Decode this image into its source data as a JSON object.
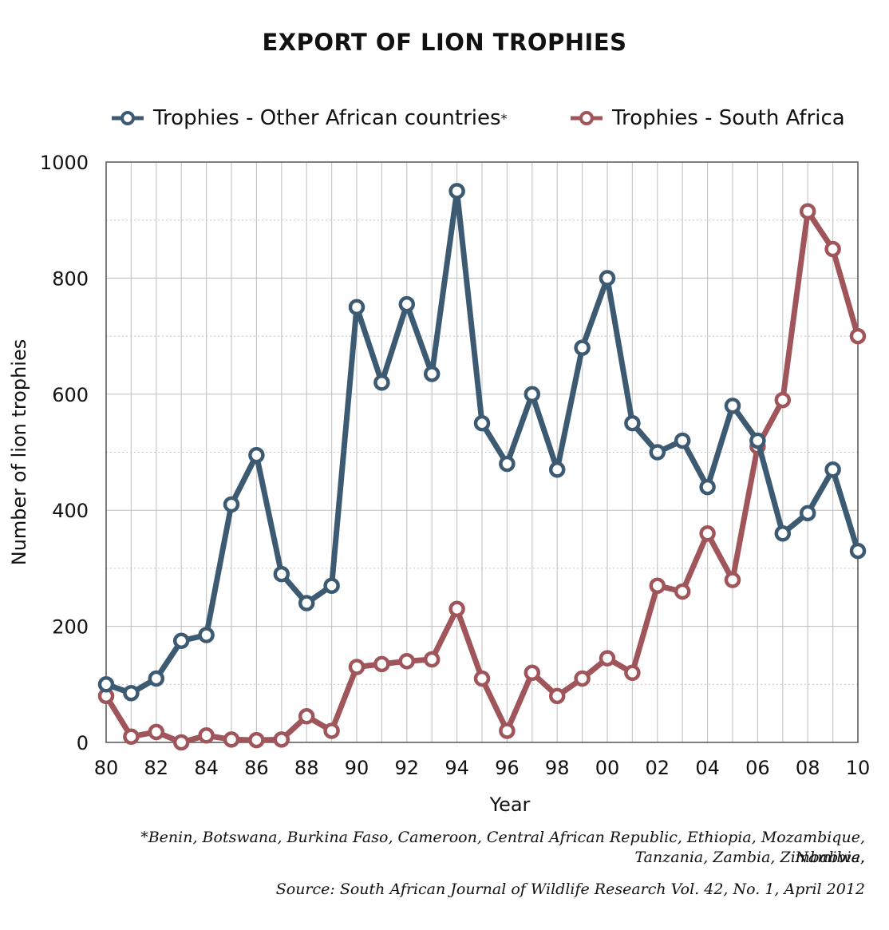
{
  "chart_data": {
    "type": "line",
    "title": "EXPORT OF LION TROPHIES",
    "xlabel": "Year",
    "ylabel": "Number of lion trophies",
    "ylim": [
      0,
      1000
    ],
    "y_ticks": [
      "0",
      "200",
      "400",
      "600",
      "800",
      "1000"
    ],
    "x_tick_labels": [
      "80",
      "82",
      "84",
      "86",
      "88",
      "90",
      "92",
      "94",
      "96",
      "98",
      "00",
      "02",
      "04",
      "06",
      "08",
      "10"
    ],
    "x": [
      1980,
      1981,
      1982,
      1983,
      1984,
      1985,
      1986,
      1987,
      1988,
      1989,
      1990,
      1991,
      1992,
      1993,
      1994,
      1995,
      1996,
      1997,
      1998,
      1999,
      2000,
      2001,
      2002,
      2003,
      2004,
      2005,
      2006,
      2007,
      2008,
      2009,
      2010
    ],
    "xlim": [
      1980,
      2010
    ],
    "grid": true,
    "legend_position": "top",
    "series": [
      {
        "name": "Trophies - Other African countries",
        "name_suffix": "*",
        "color": "#3d5a73",
        "values": [
          100,
          85,
          110,
          175,
          185,
          410,
          495,
          290,
          240,
          270,
          750,
          620,
          755,
          635,
          950,
          550,
          480,
          600,
          470,
          680,
          800,
          550,
          500,
          520,
          440,
          580,
          520,
          360,
          395,
          470,
          330
        ]
      },
      {
        "name": "Trophies - South Africa",
        "color": "#a0555a",
        "values": [
          80,
          10,
          18,
          0,
          12,
          5,
          4,
          5,
          45,
          20,
          130,
          135,
          140,
          143,
          230,
          110,
          20,
          120,
          80,
          110,
          145,
          120,
          270,
          260,
          360,
          280,
          510,
          590,
          915,
          850,
          700
        ]
      }
    ]
  },
  "footnote": {
    "line1": "*Benin, Botswana, Burkina Faso, Cameroon, Central African Republic, Ethiopia, Mozambique, Namibia,",
    "line2": "Tanzania, Zambia, Zimbabwe.",
    "source": "Source: South African Journal of Wildlife Research Vol. 42, No. 1,  April 2012"
  }
}
